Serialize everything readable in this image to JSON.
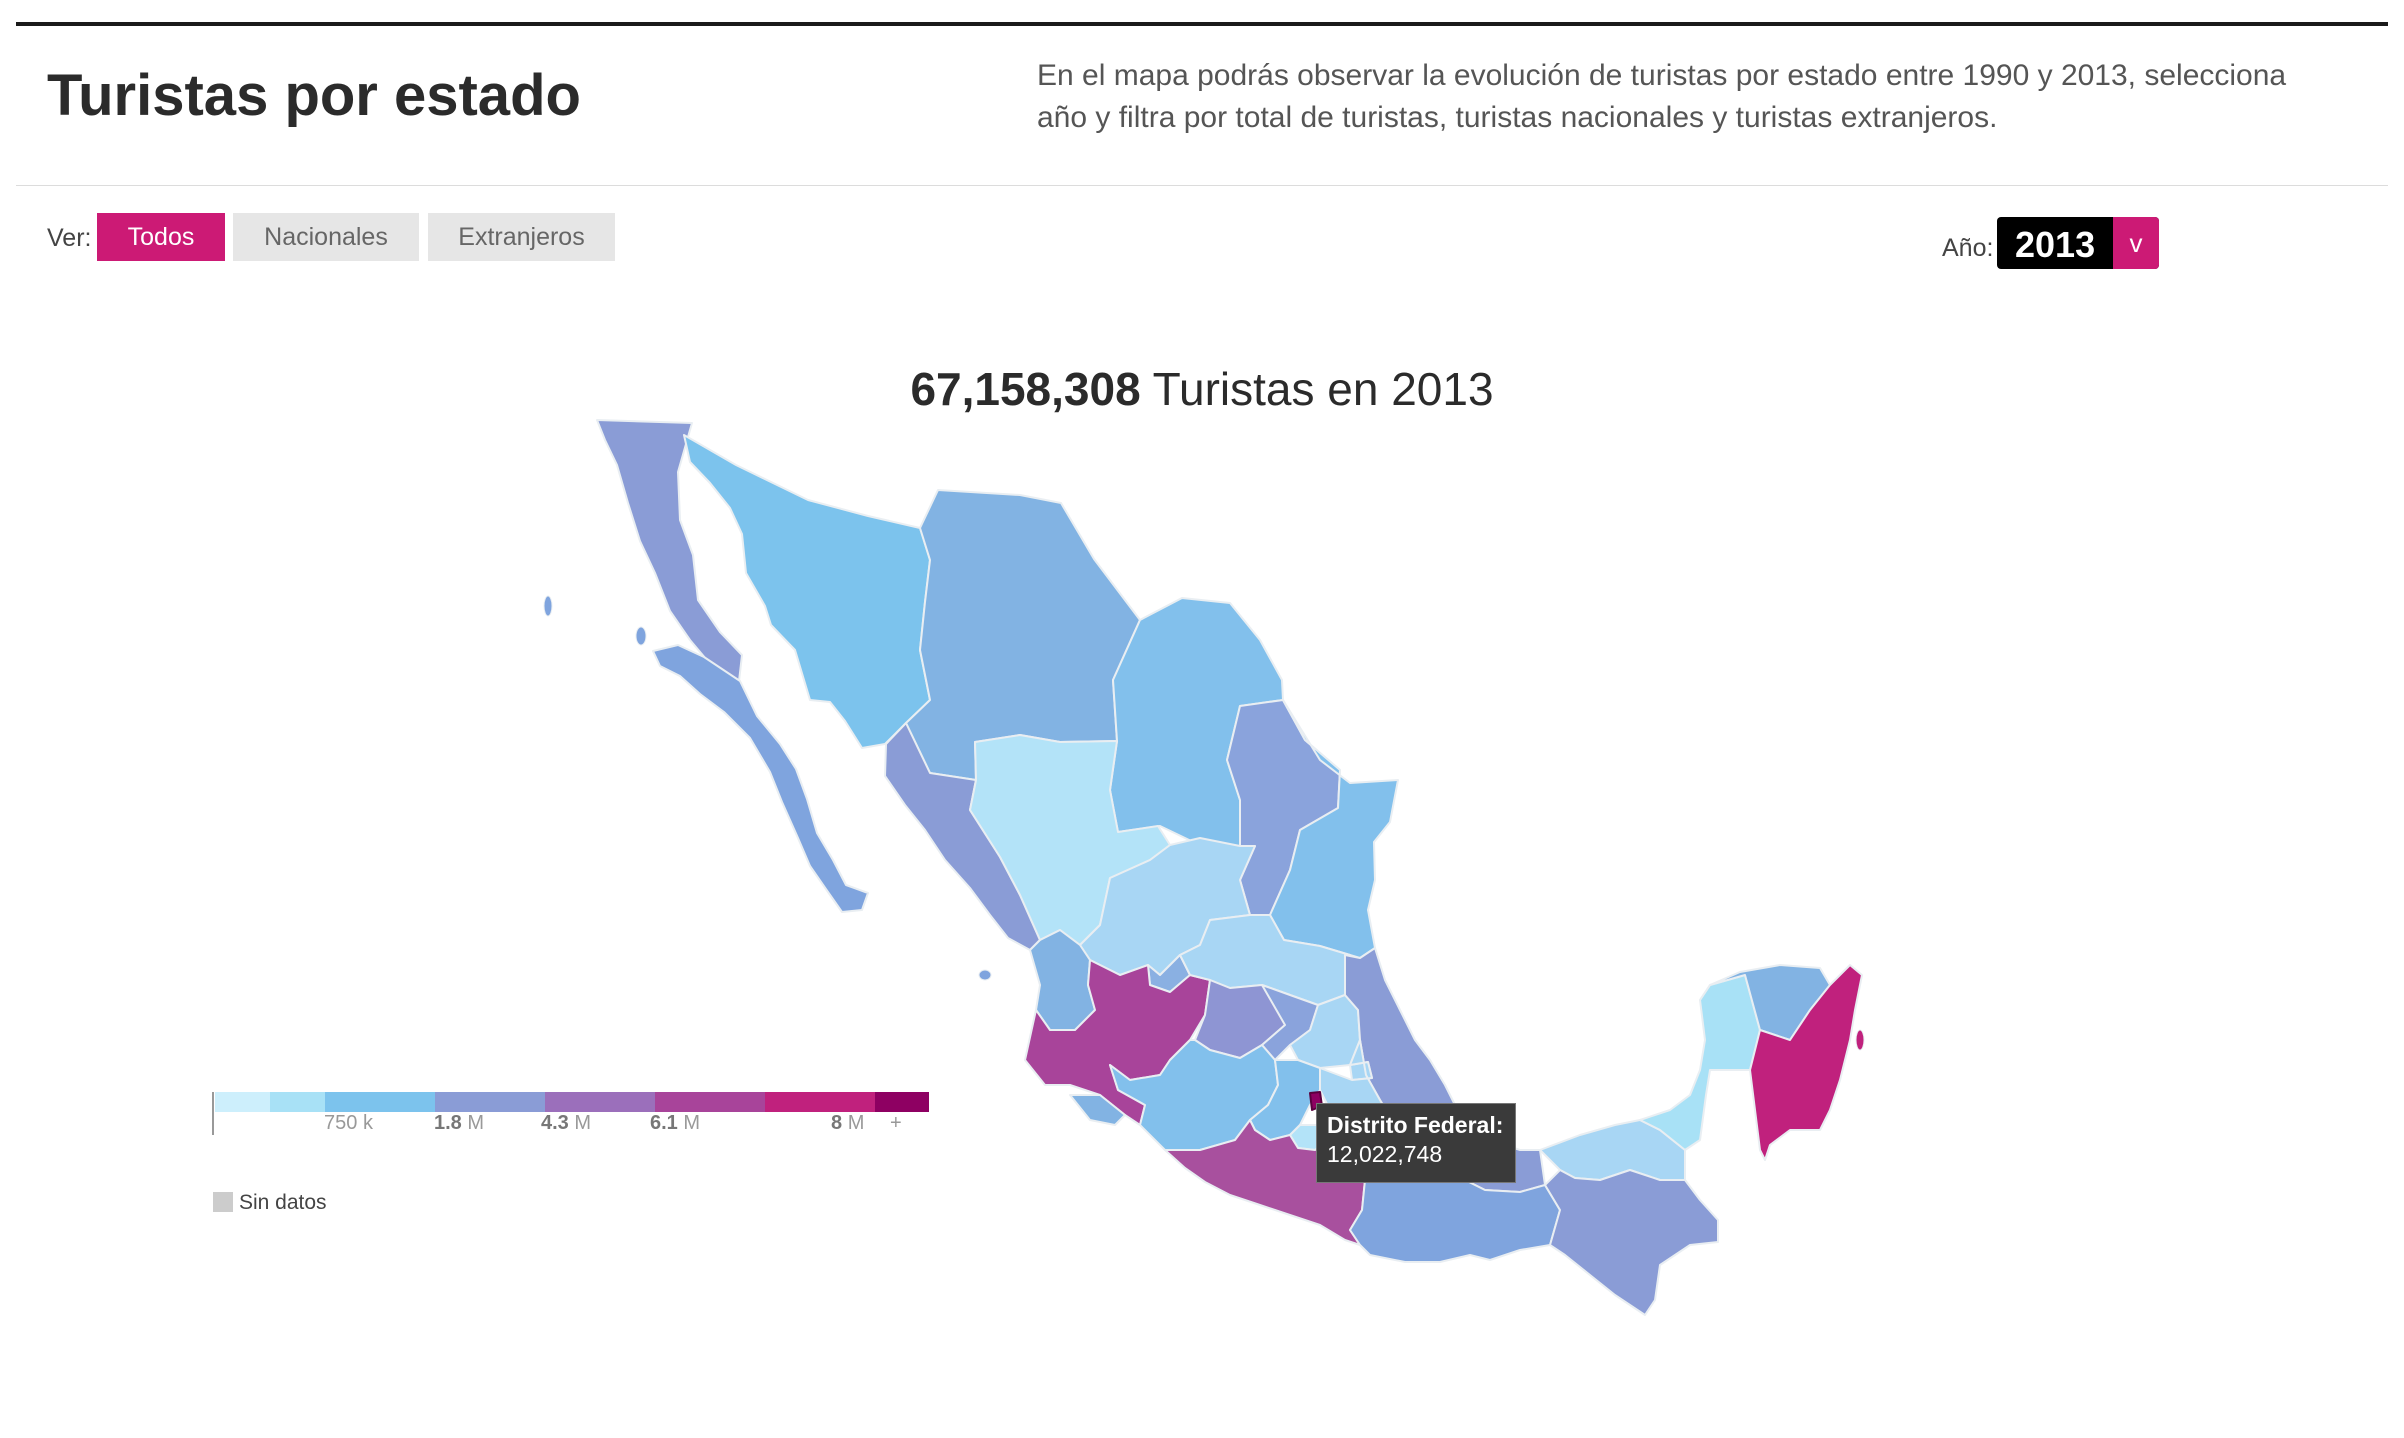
{
  "header": {
    "title": "Turistas por estado",
    "intro": "En el mapa podrás observar la evolución de turistas por estado entre 1990 y 2013, selecciona año y filtra por total de turistas, turistas nacionales y turistas extranjeros."
  },
  "filters": {
    "label": "Ver:",
    "options": [
      "Todos",
      "Nacionales",
      "Extranjeros"
    ],
    "selected": "Todos"
  },
  "year": {
    "label": "Año:",
    "value": "2013",
    "arrow": "v"
  },
  "summary": {
    "total": "67,158,308",
    "text": "Turistas en 2013"
  },
  "tooltip": {
    "name": "Distrito Federal:",
    "value": "12,022,748"
  },
  "legend": {
    "colors": [
      "#cdeffc",
      "#a8e1f6",
      "#7cc3ed",
      "#8a9cd6",
      "#9b6fbb",
      "#a8449a",
      "#c0217d",
      "#8e0062"
    ],
    "labels": [
      {
        "value": "750",
        "unit": "k"
      },
      {
        "value": "1.8",
        "unit": "M"
      },
      {
        "value": "4.3",
        "unit": "M"
      },
      {
        "value": "6.1",
        "unit": "M"
      },
      {
        "value": "8",
        "unit": "M"
      },
      {
        "value": "+",
        "unit": ""
      }
    ],
    "no_data": "Sin datos",
    "no_data_color": "#cccccc"
  }
}
